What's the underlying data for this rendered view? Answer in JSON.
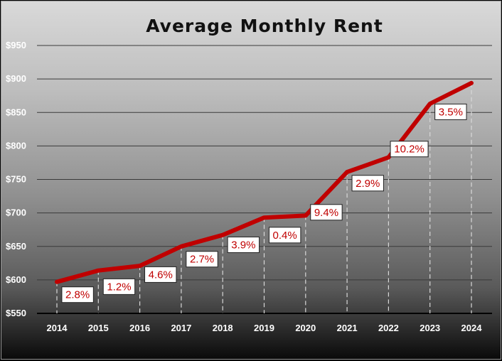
{
  "chart_data": {
    "type": "line",
    "title": "Average Monthly Rent",
    "xlabel": "",
    "ylabel": "",
    "ylim": [
      550,
      950
    ],
    "ytick_step": 50,
    "ytick_labels": [
      "$550",
      "$600",
      "$650",
      "$700",
      "$750",
      "$800",
      "$850",
      "$900",
      "$950"
    ],
    "categories": [
      "2014",
      "2015",
      "2016",
      "2017",
      "2018",
      "2019",
      "2020",
      "2021",
      "2022",
      "2023",
      "2024"
    ],
    "series": [
      {
        "values": [
          597,
          614,
          621,
          650,
          667,
          693,
          696,
          761,
          783,
          863,
          894
        ],
        "color": "#c00000"
      }
    ],
    "data_labels": [
      "2.8%",
      "1.2%",
      "4.6%",
      "2.7%",
      "3.9%",
      "0.4%",
      "9.4%",
      "2.9%",
      "10.2%",
      "3.5%"
    ],
    "grid": true,
    "legend": "none"
  }
}
